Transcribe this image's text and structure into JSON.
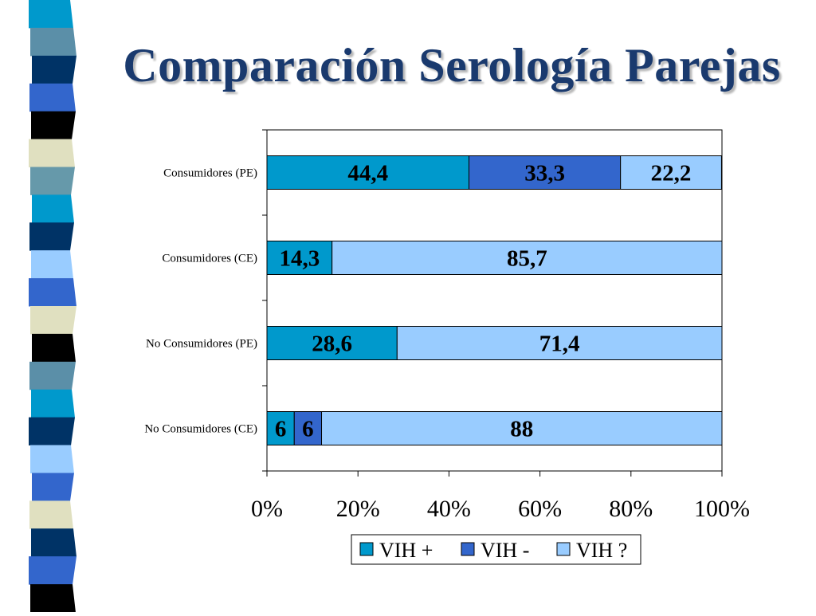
{
  "slide": {
    "title": "Comparación Serología Parejas"
  },
  "sidebar": {
    "stripes": [
      "#0099cc",
      "#5b8fa8",
      "#003366",
      "#3366cc",
      "#000000",
      "#e0e0c0",
      "#6699aa",
      "#0099cc",
      "#003366",
      "#99ccff",
      "#3366cc",
      "#e0e0c0",
      "#000000",
      "#5b8fa8",
      "#0099cc",
      "#003366",
      "#99ccff",
      "#3366cc",
      "#e0e0c0",
      "#003366",
      "#3366cc",
      "#000000"
    ]
  },
  "chart_data": {
    "type": "bar",
    "orientation": "horizontal",
    "stacking": "percent",
    "categories": [
      "Consumidores (PE)",
      "Consumidores (CE)",
      "No Consumidores (PE)",
      "No Consumidores (CE)"
    ],
    "series": [
      {
        "name": "VIH +",
        "color": "#0099cc",
        "values": [
          44.4,
          14.3,
          28.6,
          6
        ],
        "labels": [
          "44,4",
          "14,3",
          "28,6",
          "6"
        ]
      },
      {
        "name": "VIH -",
        "color": "#3366cc",
        "values": [
          33.3,
          0,
          0,
          6
        ],
        "labels": [
          "33,3",
          "",
          "",
          "6"
        ]
      },
      {
        "name": "VIH ?",
        "color": "#99ccff",
        "values": [
          22.2,
          85.7,
          71.4,
          88
        ],
        "labels": [
          "22,2",
          "85,7",
          "71,4",
          "88"
        ]
      }
    ],
    "x_ticks": [
      "0%",
      "20%",
      "40%",
      "60%",
      "80%",
      "100%"
    ],
    "xlim": [
      0,
      100
    ],
    "grid": false,
    "legend": "bottom"
  }
}
